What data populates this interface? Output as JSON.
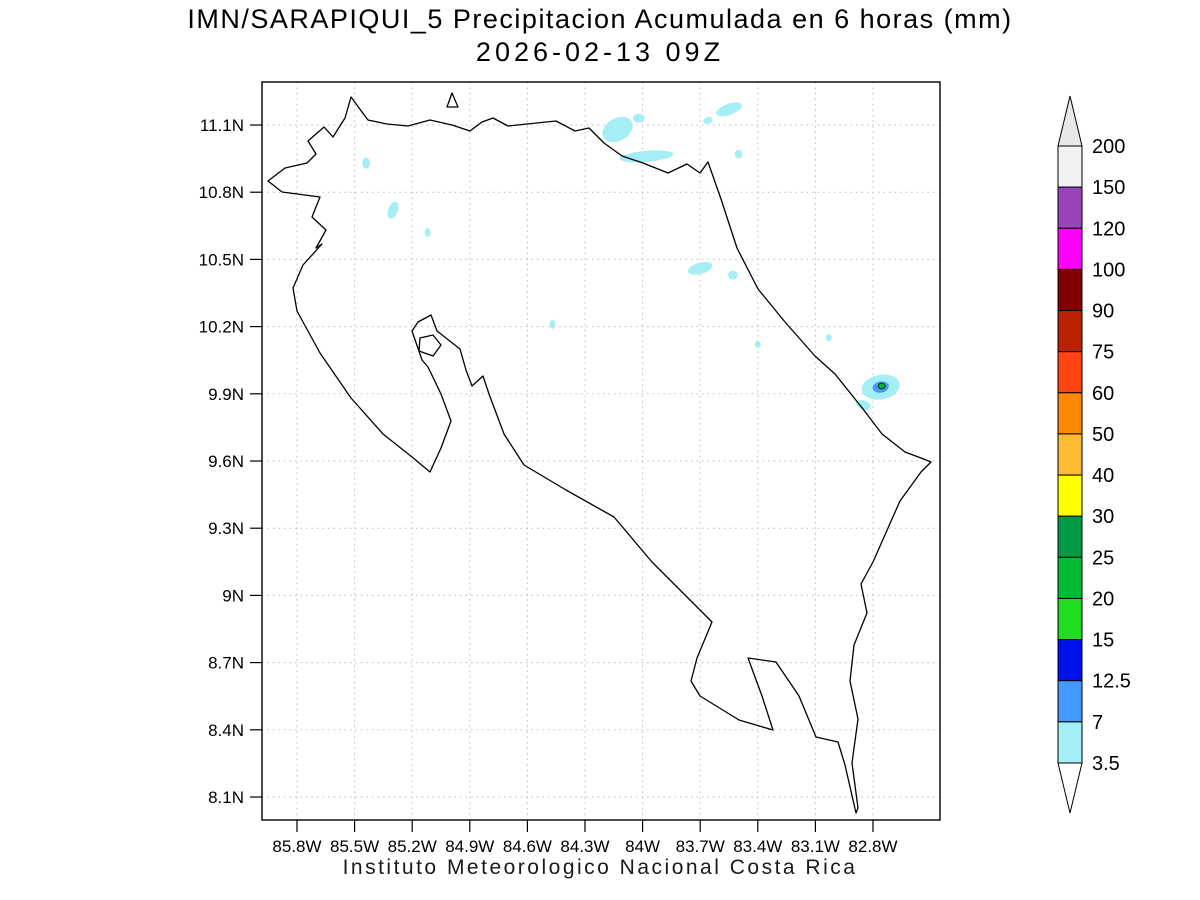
{
  "chart_data": {
    "type": "heatmap",
    "title": "IMN/SARAPIQUI_5 Precipitacion Acumulada en 6 horas (mm)",
    "subtitle": "2026-02-13 09Z",
    "footer": "Instituto Meteorologico Nacional Costa Rica",
    "units": "mm",
    "accumulation_hours": 6,
    "region": "Costa Rica",
    "lon_range_w": [
      85.98,
      82.45
    ],
    "lat_range_n": [
      8.0,
      11.29
    ],
    "grid": true,
    "legend_position": "right",
    "levels": [
      3.5,
      7,
      12.5,
      15,
      20,
      25,
      30,
      40,
      50,
      60,
      75,
      90,
      100,
      120,
      150,
      200
    ],
    "lat_ticks": [
      {
        "label": "11.1N",
        "deg": 11.1
      },
      {
        "label": "10.8N",
        "deg": 10.8
      },
      {
        "label": "10.5N",
        "deg": 10.5
      },
      {
        "label": "10.2N",
        "deg": 10.2
      },
      {
        "label": "9.9N",
        "deg": 9.9
      },
      {
        "label": "9.6N",
        "deg": 9.6
      },
      {
        "label": "9.3N",
        "deg": 9.3
      },
      {
        "label": "9N",
        "deg": 9.0
      },
      {
        "label": "8.7N",
        "deg": 8.7
      },
      {
        "label": "8.4N",
        "deg": 8.4
      },
      {
        "label": "8.1N",
        "deg": 8.1
      }
    ],
    "lon_ticks": [
      {
        "label": "85.8W",
        "deg": 85.8
      },
      {
        "label": "85.5W",
        "deg": 85.5
      },
      {
        "label": "85.2W",
        "deg": 85.2
      },
      {
        "label": "84.9W",
        "deg": 84.9
      },
      {
        "label": "84.6W",
        "deg": 84.6
      },
      {
        "label": "84.3W",
        "deg": 84.3
      },
      {
        "label": "84W",
        "deg": 84.0
      },
      {
        "label": "83.7W",
        "deg": 83.7
      },
      {
        "label": "83.4W",
        "deg": 83.4
      },
      {
        "label": "83.1W",
        "deg": 83.1
      },
      {
        "label": "82.8W",
        "deg": 82.8
      }
    ],
    "colorbar": {
      "labels": [
        "200",
        "150",
        "120",
        "100",
        "90",
        "75",
        "60",
        "50",
        "40",
        "30",
        "25",
        "20",
        "15",
        "12.5",
        "7",
        "3.5"
      ],
      "above_color": "#e8e8e8",
      "below_color": "#ffffff",
      "segments": [
        {
          "from": 3.5,
          "to": 7,
          "color": "#a5eef5"
        },
        {
          "from": 7,
          "to": 12.5,
          "color": "#4499ff"
        },
        {
          "from": 12.5,
          "to": 15,
          "color": "#0011ee"
        },
        {
          "from": 15,
          "to": 20,
          "color": "#22dd22"
        },
        {
          "from": 20,
          "to": 25,
          "color": "#00bb33"
        },
        {
          "from": 25,
          "to": 30,
          "color": "#009944"
        },
        {
          "from": 30,
          "to": 40,
          "color": "#ffff00"
        },
        {
          "from": 40,
          "to": 50,
          "color": "#ffbb33"
        },
        {
          "from": 50,
          "to": 60,
          "color": "#ff8800"
        },
        {
          "from": 60,
          "to": 75,
          "color": "#ff4411"
        },
        {
          "from": 75,
          "to": 90,
          "color": "#bb2200"
        },
        {
          "from": 90,
          "to": 100,
          "color": "#7f0000"
        },
        {
          "from": 100,
          "to": 120,
          "color": "#ff00ff"
        },
        {
          "from": 120,
          "to": 150,
          "color": "#9944bb"
        },
        {
          "from": 150,
          "to": 200,
          "color": "#f2f2f2"
        }
      ]
    },
    "patches": [
      {
        "lon": 85.44,
        "lat": 10.93,
        "w": 0.04,
        "h": 0.05,
        "rot": 0,
        "level": 3.5
      },
      {
        "lon": 85.3,
        "lat": 10.72,
        "w": 0.05,
        "h": 0.08,
        "rot": 20,
        "level": 3.5
      },
      {
        "lon": 85.12,
        "lat": 10.62,
        "w": 0.03,
        "h": 0.04,
        "rot": 0,
        "level": 3.5
      },
      {
        "lon": 84.13,
        "lat": 11.08,
        "w": 0.17,
        "h": 0.1,
        "rot": -30,
        "level": 3.5
      },
      {
        "lon": 84.02,
        "lat": 11.13,
        "w": 0.06,
        "h": 0.04,
        "rot": 0,
        "level": 3.5
      },
      {
        "lon": 83.98,
        "lat": 10.96,
        "w": 0.28,
        "h": 0.05,
        "rot": -5,
        "level": 3.5
      },
      {
        "lon": 83.55,
        "lat": 11.17,
        "w": 0.14,
        "h": 0.05,
        "rot": -20,
        "level": 3.5
      },
      {
        "lon": 83.66,
        "lat": 11.12,
        "w": 0.05,
        "h": 0.03,
        "rot": -20,
        "level": 3.5
      },
      {
        "lon": 83.5,
        "lat": 10.97,
        "w": 0.04,
        "h": 0.04,
        "rot": 0,
        "level": 3.5
      },
      {
        "lon": 83.7,
        "lat": 10.46,
        "w": 0.13,
        "h": 0.05,
        "rot": -15,
        "level": 3.5
      },
      {
        "lon": 83.53,
        "lat": 10.43,
        "w": 0.05,
        "h": 0.04,
        "rot": 0,
        "level": 3.5
      },
      {
        "lon": 84.47,
        "lat": 10.21,
        "w": 0.03,
        "h": 0.04,
        "rot": 0,
        "level": 3.5
      },
      {
        "lon": 83.4,
        "lat": 10.12,
        "w": 0.03,
        "h": 0.03,
        "rot": 0,
        "level": 3.5
      },
      {
        "lon": 83.03,
        "lat": 10.15,
        "w": 0.03,
        "h": 0.03,
        "rot": 0,
        "level": 3.5
      },
      {
        "lon": 82.76,
        "lat": 9.93,
        "w": 0.2,
        "h": 0.11,
        "rot": -10,
        "level": 3.5
      },
      {
        "lon": 82.85,
        "lat": 9.85,
        "w": 0.08,
        "h": 0.04,
        "rot": 20,
        "level": 3.5
      },
      {
        "lon": 82.76,
        "lat": 9.93,
        "w": 0.085,
        "h": 0.05,
        "rot": -10,
        "level": 7
      },
      {
        "lon": 82.755,
        "lat": 9.935,
        "w": 0.035,
        "h": 0.025,
        "rot": 0,
        "level": 20,
        "outline": true
      }
    ]
  }
}
